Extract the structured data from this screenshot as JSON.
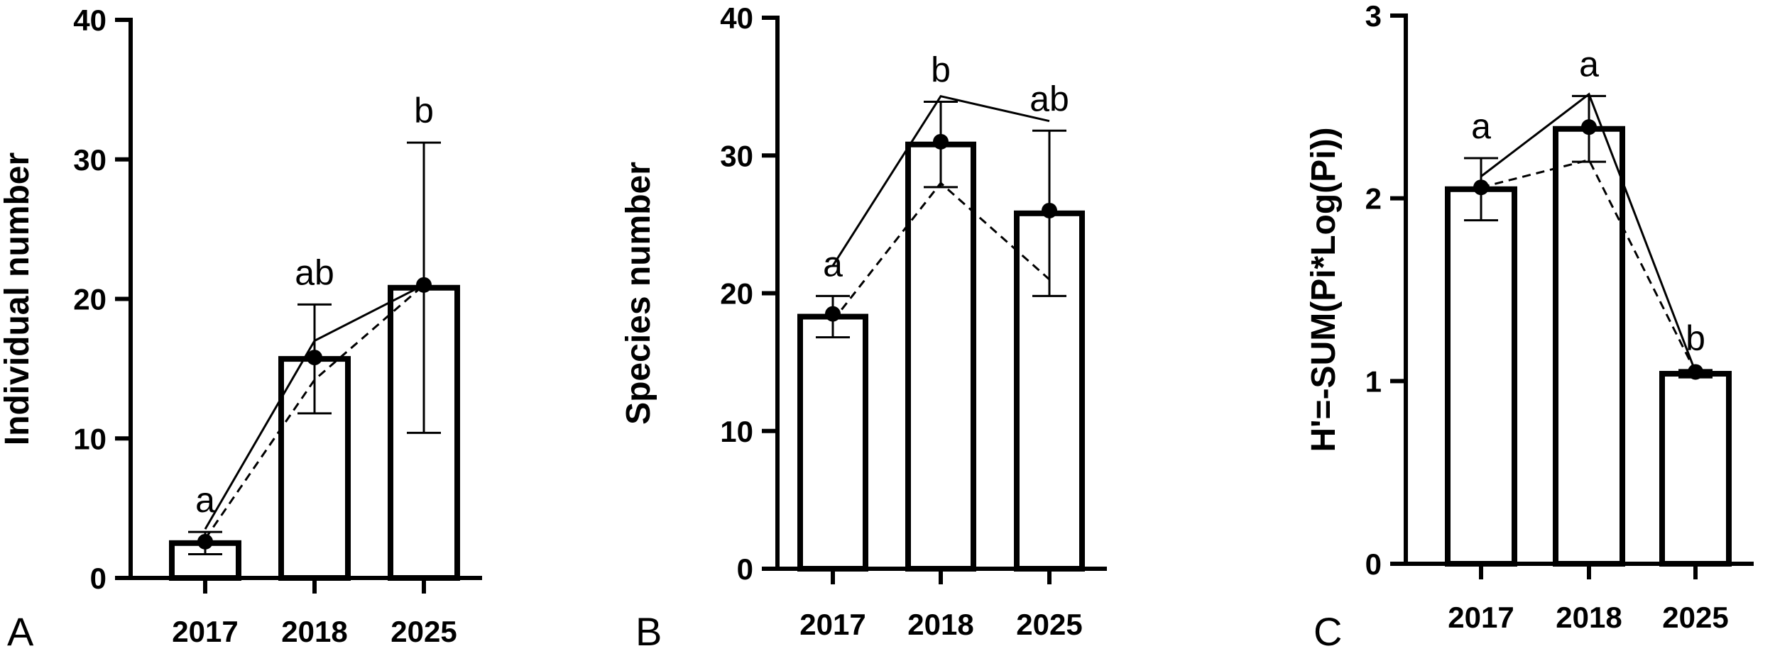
{
  "chart_data": [
    {
      "type": "bar",
      "panel_label": "A",
      "ylabel": "Individual number",
      "categories": [
        "2017",
        "2018",
        "2025"
      ],
      "values": [
        2.5,
        15.7,
        20.8
      ],
      "error": [
        0.8,
        3.9,
        10.4
      ],
      "significance": [
        "a",
        "ab",
        "b"
      ],
      "mean_points": [
        2.6,
        15.8,
        21.0
      ],
      "solid_line": [
        3.5,
        17.0,
        21.0
      ],
      "dashed_line": [
        2.8,
        14.2,
        21.0
      ],
      "ylim": [
        0,
        40
      ],
      "yticks": [
        "0",
        "10",
        "20",
        "30",
        "40"
      ]
    },
    {
      "type": "bar",
      "panel_label": "B",
      "ylabel": "Species number",
      "categories": [
        "2017",
        "2018",
        "2025"
      ],
      "values": [
        18.3,
        30.8,
        25.8
      ],
      "error": [
        1.5,
        3.1,
        6.0
      ],
      "significance": [
        "a",
        "b",
        "ab"
      ],
      "mean_points": [
        18.5,
        31.0,
        26.0
      ],
      "solid_line": [
        22.0,
        34.3,
        32.5
      ],
      "dashed_line": [
        18.0,
        28.0,
        21.0
      ],
      "ylim": [
        0,
        40
      ],
      "yticks": [
        "0",
        "10",
        "20",
        "30",
        "40"
      ]
    },
    {
      "type": "bar",
      "panel_label": "C",
      "ylabel": "H'=-SUM(Pi*Log(Pi))",
      "categories": [
        "2017",
        "2018",
        "2025"
      ],
      "values": [
        2.05,
        2.38,
        1.04
      ],
      "error": [
        0.17,
        0.18,
        0.02
      ],
      "significance": [
        "a",
        "a",
        "b"
      ],
      "mean_points": [
        2.06,
        2.39,
        1.05
      ],
      "solid_line": [
        2.12,
        2.57,
        1.05
      ],
      "dashed_line": [
        2.06,
        2.21,
        1.05
      ],
      "ylim": [
        0,
        3
      ],
      "yticks": [
        "0",
        "1",
        "2",
        "3"
      ]
    }
  ]
}
